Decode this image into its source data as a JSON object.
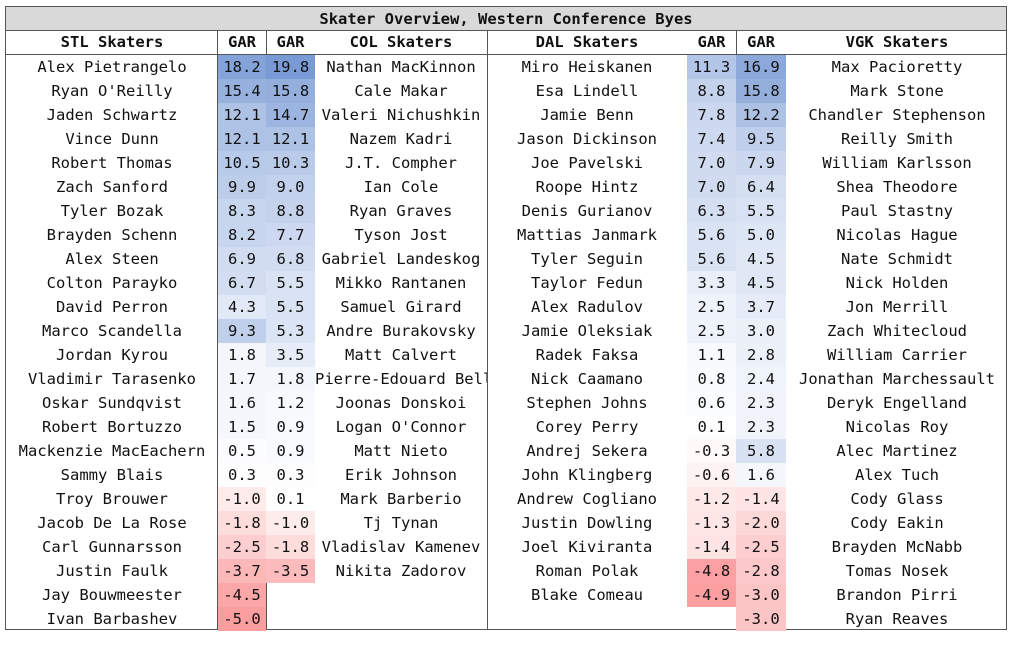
{
  "title": "Skater Overview, Western Conference Byes",
  "headers": {
    "stl": "STL Skaters",
    "gar": "GAR",
    "col": "COL Skaters",
    "dal": "DAL Skaters",
    "vgk": "VGK Skaters"
  },
  "colors": {
    "positive": "#4472c4",
    "negative": "#f8696b",
    "neutral": "#ffffff",
    "header_bg": "#d9d9d9"
  },
  "teams": [
    {
      "key": "stl",
      "rows": [
        [
          "Alex Pietrangelo",
          "18.2"
        ],
        [
          "Ryan O'Reilly",
          "15.4"
        ],
        [
          "Jaden Schwartz",
          "12.1"
        ],
        [
          "Vince Dunn",
          "12.1"
        ],
        [
          "Robert Thomas",
          "10.5"
        ],
        [
          "Zach Sanford",
          "9.9"
        ],
        [
          "Tyler Bozak",
          "8.3"
        ],
        [
          "Brayden Schenn",
          "8.2"
        ],
        [
          "Alex Steen",
          "6.9"
        ],
        [
          "Colton Parayko",
          "6.7"
        ],
        [
          "David Perron",
          "4.3"
        ],
        [
          "Marco Scandella",
          "9.3"
        ],
        [
          "Jordan Kyrou",
          "1.8"
        ],
        [
          "Vladimir Tarasenko",
          "1.7"
        ],
        [
          "Oskar Sundqvist",
          "1.6"
        ],
        [
          "Robert Bortuzzo",
          "1.5"
        ],
        [
          "Mackenzie MacEachern",
          "0.5"
        ],
        [
          "Sammy Blais",
          "0.3"
        ],
        [
          "Troy Brouwer",
          "-1.0"
        ],
        [
          "Jacob De La Rose",
          "-1.8"
        ],
        [
          "Carl Gunnarsson",
          "-2.5"
        ],
        [
          "Justin Faulk",
          "-3.7"
        ],
        [
          "Jay Bouwmeester",
          "-4.5"
        ],
        [
          "Ivan Barbashev",
          "-5.0"
        ]
      ]
    },
    {
      "key": "col",
      "rows": [
        [
          "Nathan MacKinnon",
          "19.8"
        ],
        [
          "Cale Makar",
          "15.8"
        ],
        [
          "Valeri Nichushkin",
          "14.7"
        ],
        [
          "Nazem Kadri",
          "12.1"
        ],
        [
          "J.T. Compher",
          "10.3"
        ],
        [
          "Ian Cole",
          "9.0"
        ],
        [
          "Ryan Graves",
          "8.8"
        ],
        [
          "Tyson Jost",
          "7.7"
        ],
        [
          "Gabriel Landeskog",
          "6.8"
        ],
        [
          "Mikko Rantanen",
          "5.5"
        ],
        [
          "Samuel Girard",
          "5.5"
        ],
        [
          "Andre Burakovsky",
          "5.3"
        ],
        [
          "Matt Calvert",
          "3.5"
        ],
        [
          "Pierre-Edouard Bellemare",
          "1.8"
        ],
        [
          "Joonas Donskoi",
          "1.2"
        ],
        [
          "Logan O'Connor",
          "0.9"
        ],
        [
          "Matt Nieto",
          "0.9"
        ],
        [
          "Erik Johnson",
          "0.3"
        ],
        [
          "Mark Barberio",
          "0.1"
        ],
        [
          "Tj Tynan",
          "-1.0"
        ],
        [
          "Vladislav Kamenev",
          "-1.8"
        ],
        [
          "Nikita Zadorov",
          "-3.5"
        ]
      ]
    },
    {
      "key": "dal",
      "rows": [
        [
          "Miro Heiskanen",
          "11.3"
        ],
        [
          "Esa Lindell",
          "8.8"
        ],
        [
          "Jamie Benn",
          "7.8"
        ],
        [
          "Jason Dickinson",
          "7.4"
        ],
        [
          "Joe Pavelski",
          "7.0"
        ],
        [
          "Roope Hintz",
          "7.0"
        ],
        [
          "Denis Gurianov",
          "6.3"
        ],
        [
          "Mattias Janmark",
          "5.6"
        ],
        [
          "Tyler Seguin",
          "5.6"
        ],
        [
          "Taylor Fedun",
          "3.3"
        ],
        [
          "Alex Radulov",
          "2.5"
        ],
        [
          "Jamie Oleksiak",
          "2.5"
        ],
        [
          "Radek Faksa",
          "1.1"
        ],
        [
          "Nick Caamano",
          "0.8"
        ],
        [
          "Stephen Johns",
          "0.6"
        ],
        [
          "Corey Perry",
          "0.1"
        ],
        [
          "Andrej Sekera",
          "-0.3"
        ],
        [
          "John Klingberg",
          "-0.6"
        ],
        [
          "Andrew Cogliano",
          "-1.2"
        ],
        [
          "Justin Dowling",
          "-1.3"
        ],
        [
          "Joel Kiviranta",
          "-1.4"
        ],
        [
          "Roman Polak",
          "-4.8"
        ],
        [
          "Blake Comeau",
          "-4.9"
        ]
      ]
    },
    {
      "key": "vgk",
      "rows": [
        [
          "Max Pacioretty",
          "16.9"
        ],
        [
          "Mark Stone",
          "15.8"
        ],
        [
          "Chandler Stephenson",
          "12.2"
        ],
        [
          "Reilly Smith",
          "9.5"
        ],
        [
          "William Karlsson",
          "7.9"
        ],
        [
          "Shea Theodore",
          "6.4"
        ],
        [
          "Paul Stastny",
          "5.5"
        ],
        [
          "Nicolas Hague",
          "5.0"
        ],
        [
          "Nate Schmidt",
          "4.5"
        ],
        [
          "Nick Holden",
          "4.5"
        ],
        [
          "Jon Merrill",
          "3.7"
        ],
        [
          "Zach Whitecloud",
          "3.0"
        ],
        [
          "William Carrier",
          "2.8"
        ],
        [
          "Jonathan Marchessault",
          "2.4"
        ],
        [
          "Deryk Engelland",
          "2.3"
        ],
        [
          "Nicolas Roy",
          "2.3"
        ],
        [
          "Alec Martinez",
          "5.8"
        ],
        [
          "Alex Tuch",
          "1.6"
        ],
        [
          "Cody Glass",
          "-1.4"
        ],
        [
          "Cody Eakin",
          "-2.0"
        ],
        [
          "Brayden McNabb",
          "-2.5"
        ],
        [
          "Tomas Nosek",
          "-2.8"
        ],
        [
          "Brandon Pirri",
          "-3.0"
        ],
        [
          "Ryan Reaves",
          "-3.0"
        ]
      ]
    }
  ]
}
